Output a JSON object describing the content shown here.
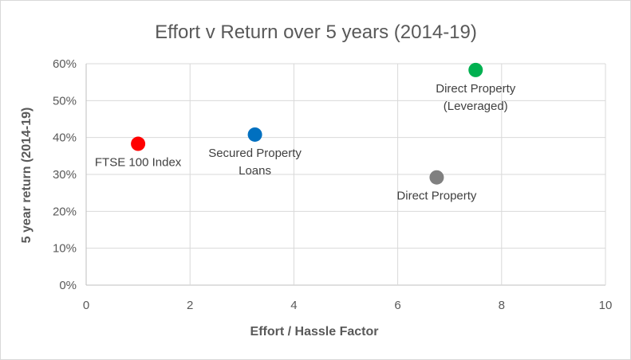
{
  "chart_data": {
    "type": "scatter",
    "title": "Effort v Return over 5 years (2014-19)",
    "xlabel": "Effort / Hassle Factor",
    "ylabel": "5 year return (2014-19)",
    "xlim": [
      0,
      10
    ],
    "ylim": [
      0,
      0.6
    ],
    "x_ticks": [
      0,
      2,
      4,
      6,
      8,
      10
    ],
    "y_ticks": [
      0,
      0.1,
      0.2,
      0.3,
      0.4,
      0.5,
      0.6
    ],
    "x_tick_labels": [
      "0",
      "2",
      "4",
      "6",
      "8",
      "10"
    ],
    "y_tick_labels": [
      "0%",
      "10%",
      "20%",
      "30%",
      "40%",
      "50%",
      "60%"
    ],
    "grid": true,
    "legend": "none",
    "points": [
      {
        "label_lines": [
          "FTSE 100 Index"
        ],
        "x": 1.0,
        "y": 0.383,
        "color": "#ff0000",
        "label_pos": "below"
      },
      {
        "label_lines": [
          "Secured Property",
          "Loans"
        ],
        "x": 3.25,
        "y": 0.408,
        "color": "#0070c0",
        "label_pos": "below"
      },
      {
        "label_lines": [
          "Direct Property"
        ],
        "x": 6.75,
        "y": 0.292,
        "color": "#808080",
        "label_pos": "below"
      },
      {
        "label_lines": [
          "Direct Property",
          "(Leveraged)"
        ],
        "x": 7.5,
        "y": 0.583,
        "color": "#00b050",
        "label_pos": "below"
      }
    ]
  }
}
